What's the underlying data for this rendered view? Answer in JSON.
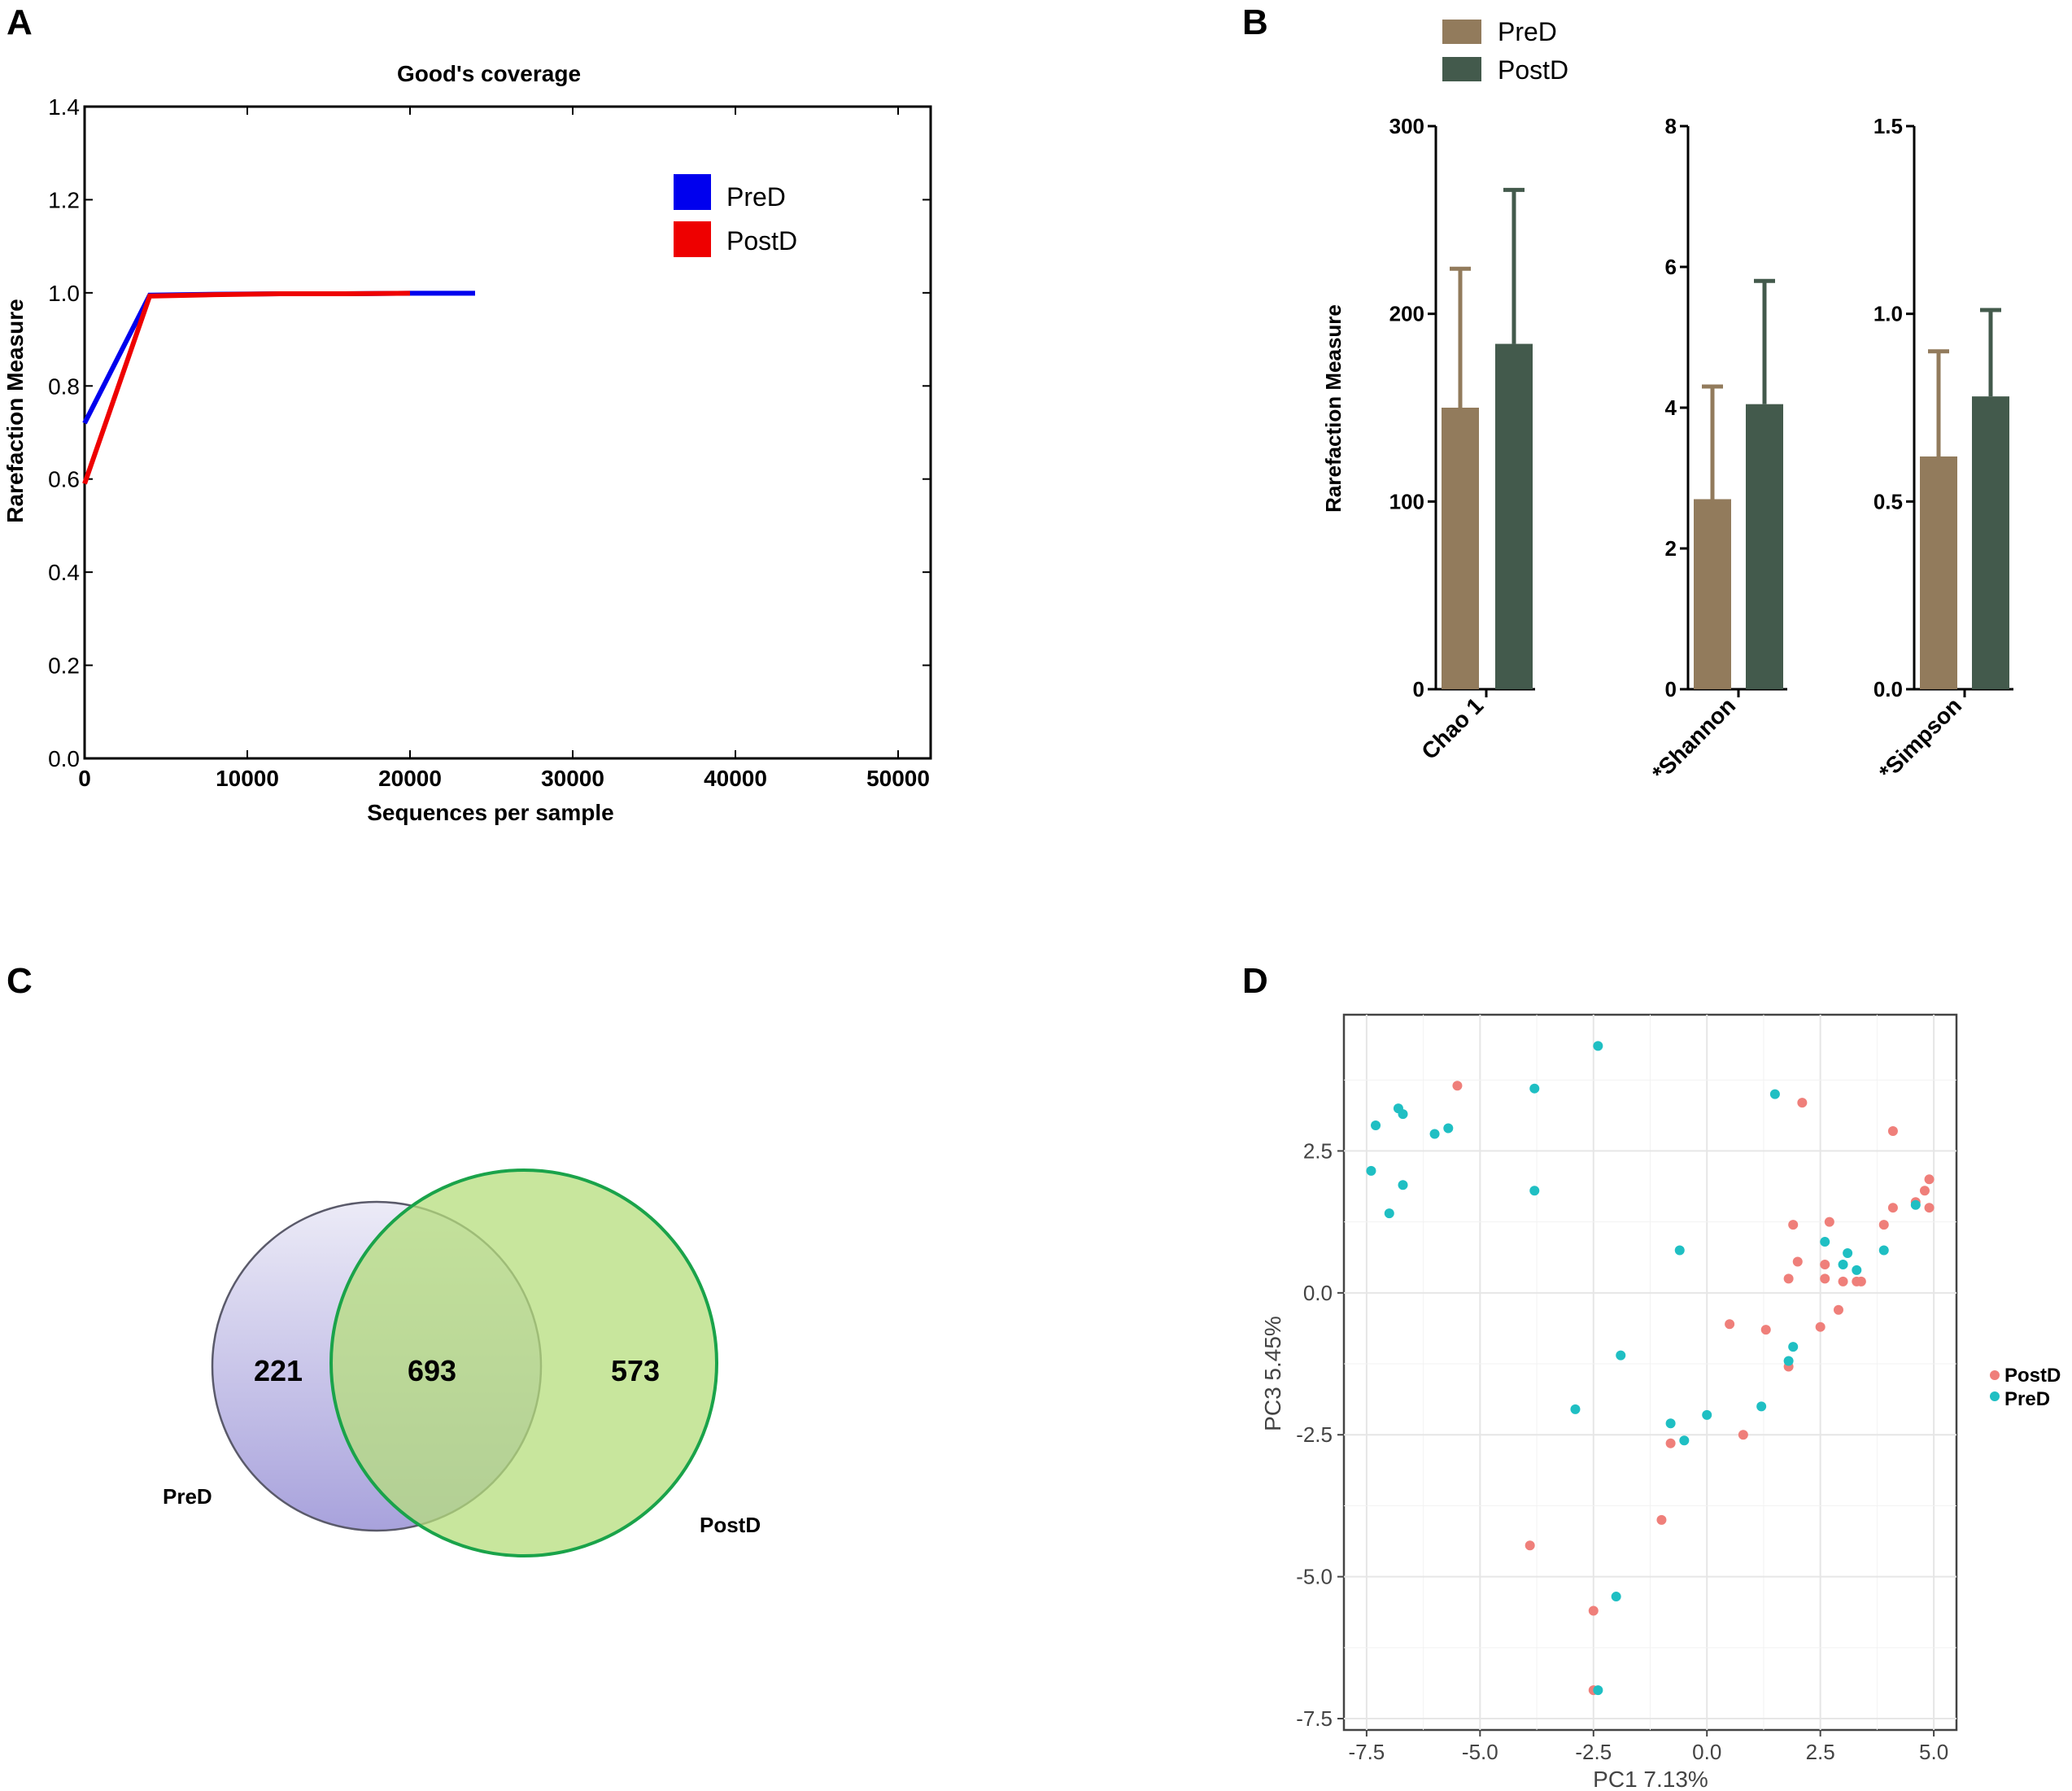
{
  "chart_data": [
    {
      "panel": "A",
      "type": "line",
      "title": "Good's coverage",
      "xlabel": "Sequences per sample",
      "ylabel": "Rarefaction Measure",
      "xlim": [
        0,
        52000
      ],
      "ylim": [
        0,
        1.4
      ],
      "xticks": [
        0,
        10000,
        20000,
        30000,
        40000,
        50000
      ],
      "yticks": [
        0.0,
        0.2,
        0.4,
        0.6,
        0.8,
        1.0,
        1.2,
        1.4
      ],
      "legend_position": "top-right",
      "series": [
        {
          "name": "PreD",
          "color": "#0000ee",
          "x": [
            0,
            4000,
            8000,
            12000,
            16000,
            20000,
            24000
          ],
          "y": [
            0.72,
            0.995,
            0.997,
            0.998,
            0.998,
            0.999,
            0.999
          ]
        },
        {
          "name": "PostD",
          "color": "#ee0000",
          "x": [
            0,
            4000,
            8000,
            12000,
            16000,
            20000
          ],
          "y": [
            0.59,
            0.993,
            0.996,
            0.998,
            0.998,
            0.999
          ]
        }
      ]
    },
    {
      "panel": "B",
      "type": "bar",
      "ylabel": "Rarefaction Measure",
      "legend_position": "top-left",
      "legend": [
        {
          "name": "PreD",
          "color": "#927b5c"
        },
        {
          "name": "PostD",
          "color": "#435a4c"
        }
      ],
      "subplots": [
        {
          "category": "Chao 1",
          "ylim": [
            0,
            300
          ],
          "yticks": [
            "0",
            "100",
            "200",
            "300"
          ],
          "tick_values": [
            0,
            100,
            200,
            300
          ],
          "values": [
            150,
            184
          ],
          "errors": [
            224,
            266
          ]
        },
        {
          "category": "*Shannon",
          "ylim": [
            0,
            8
          ],
          "yticks": [
            "0",
            "2",
            "4",
            "6",
            "8"
          ],
          "tick_values": [
            0,
            2,
            4,
            6,
            8
          ],
          "values": [
            2.7,
            4.05
          ],
          "errors": [
            4.3,
            5.8
          ]
        },
        {
          "category": "*Simpson",
          "ylim": [
            0,
            1.5
          ],
          "yticks": [
            "0.0",
            "0.5",
            "1.0",
            "1.5"
          ],
          "tick_values": [
            0,
            0.5,
            1.0,
            1.5
          ],
          "values": [
            0.62,
            0.78
          ],
          "errors": [
            0.9,
            1.01
          ]
        }
      ]
    },
    {
      "panel": "C",
      "type": "venn",
      "sets": [
        {
          "name": "PreD",
          "color": "#a9a3db"
        },
        {
          "name": "PostD",
          "color": "#c6e3a0"
        }
      ],
      "counts": {
        "only_PreD": "221",
        "both": "693",
        "only_PostD": "573"
      }
    },
    {
      "panel": "D",
      "type": "scatter",
      "xlabel": "PC1  7.13%",
      "ylabel": "PC3  5.45%",
      "xlim": [
        -8.0,
        5.5
      ],
      "ylim": [
        -7.7,
        4.9
      ],
      "xticks": [
        "-7.5",
        "-5.0",
        "-2.5",
        "0.0",
        "2.5",
        "5.0"
      ],
      "xtick_values": [
        -7.5,
        -5.0,
        -2.5,
        0.0,
        2.5,
        5.0
      ],
      "yticks": [
        "-7.5",
        "-5.0",
        "-2.5",
        "0.0",
        "2.5"
      ],
      "ytick_values": [
        -7.5,
        -5.0,
        -2.5,
        0.0,
        2.5
      ],
      "legend_position": "right",
      "series": [
        {
          "name": "PostD",
          "color": "#ef7f7a",
          "x": [
            -5.5,
            2.1,
            4.1,
            4.9,
            4.8,
            4.1,
            3.9,
            4.6,
            4.9,
            2.7,
            1.9,
            2.6,
            2.0,
            1.8,
            3.0,
            2.6,
            3.3,
            3.4,
            2.9,
            0.5,
            1.3,
            2.5,
            1.8,
            0.8,
            -0.8,
            -1.0,
            -3.9,
            -2.5,
            -2.5
          ],
          "y": [
            3.65,
            3.35,
            2.85,
            2.0,
            1.8,
            1.5,
            1.2,
            1.6,
            1.5,
            1.25,
            1.2,
            0.5,
            0.55,
            0.25,
            0.2,
            0.25,
            0.2,
            0.2,
            -0.3,
            -0.55,
            -0.65,
            -0.6,
            -1.3,
            -2.5,
            -2.65,
            -4.0,
            -4.45,
            -5.6,
            -7.0
          ]
        },
        {
          "name": "PreD",
          "color": "#1fbfc3",
          "x": [
            -2.4,
            -7.3,
            -6.8,
            -6.7,
            -6.0,
            -5.7,
            -3.8,
            1.5,
            -7.4,
            -6.7,
            -7.0,
            -3.8,
            -0.6,
            2.6,
            3.0,
            3.1,
            3.3,
            3.9,
            4.6,
            1.9,
            1.8,
            -1.9,
            -2.9,
            1.2,
            0.0,
            -0.8,
            -0.5,
            -2.0,
            -2.4
          ],
          "y": [
            4.35,
            2.95,
            3.25,
            3.15,
            2.8,
            2.9,
            3.6,
            3.5,
            2.15,
            1.9,
            1.4,
            1.8,
            0.75,
            0.9,
            0.5,
            0.7,
            0.4,
            0.75,
            1.55,
            -0.95,
            -1.2,
            -1.1,
            -2.05,
            -2.0,
            -2.15,
            -2.3,
            -2.6,
            -5.35,
            -7.0
          ]
        }
      ]
    }
  ],
  "panel_labels": [
    "A",
    "B",
    "C",
    "D"
  ]
}
